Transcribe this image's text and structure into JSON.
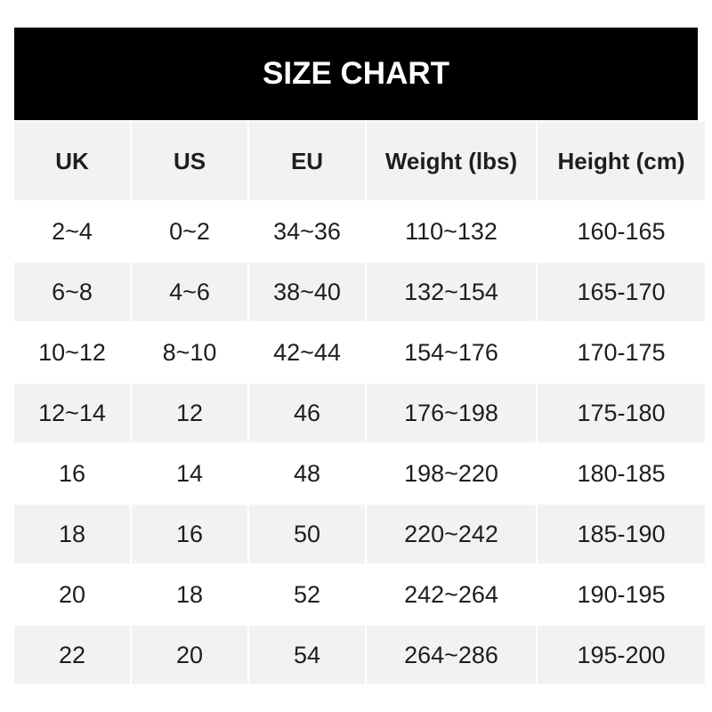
{
  "title": "SIZE CHART",
  "columns": [
    "UK",
    "US",
    "EU",
    "Weight (lbs)",
    "Height (cm)"
  ],
  "rows": [
    [
      "2~4",
      "0~2",
      "34~36",
      "110~132",
      "160-165"
    ],
    [
      "6~8",
      "4~6",
      "38~40",
      "132~154",
      "165-170"
    ],
    [
      "10~12",
      "8~10",
      "42~44",
      "154~176",
      "170-175"
    ],
    [
      "12~14",
      "12",
      "46",
      "176~198",
      "175-180"
    ],
    [
      "16",
      "14",
      "48",
      "198~220",
      "180-185"
    ],
    [
      "18",
      "16",
      "50",
      "220~242",
      "185-190"
    ],
    [
      "20",
      "18",
      "52",
      "242~264",
      "190-195"
    ],
    [
      "22",
      "20",
      "54",
      "264~286",
      "195-200"
    ]
  ],
  "colors": {
    "header_bg": "#000000",
    "stripe": "#f2f2f2",
    "text": "#1e1e1e"
  }
}
